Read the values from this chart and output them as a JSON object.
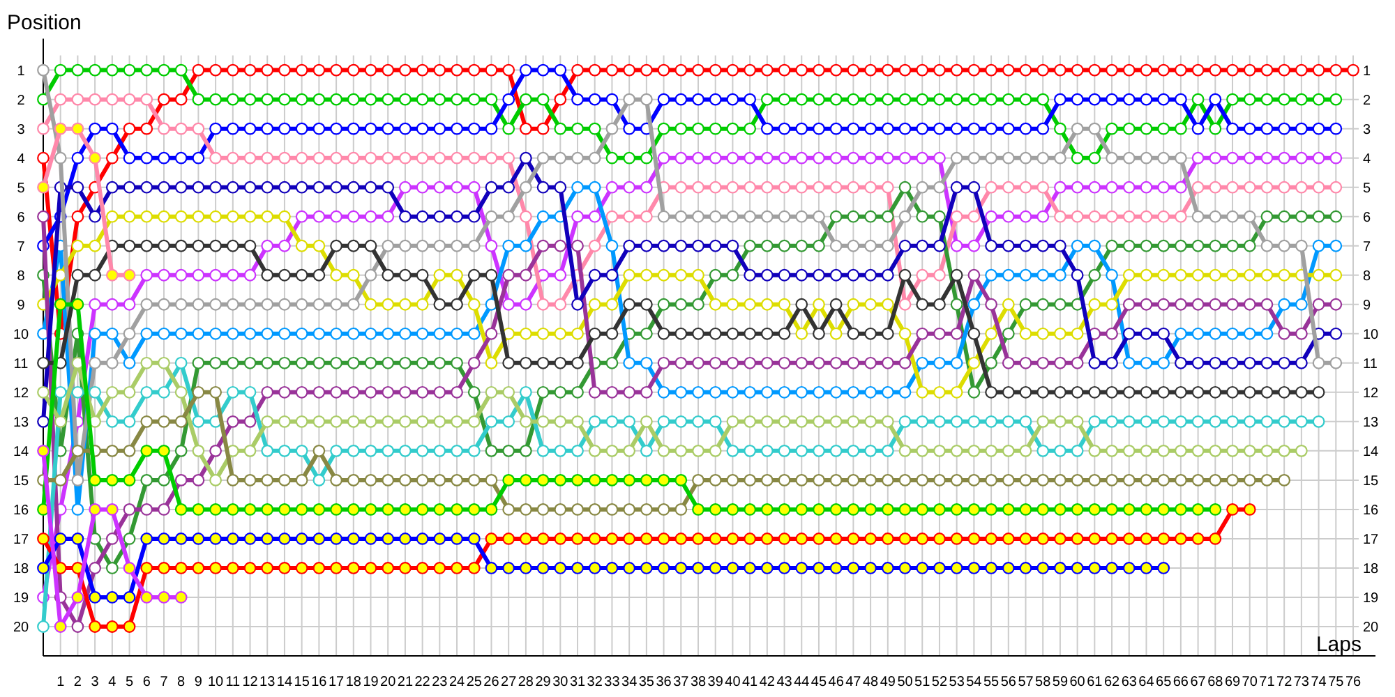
{
  "chart_data": {
    "type": "line",
    "xlabel": "Laps",
    "ylabel": "Position",
    "marker": "circle",
    "grid": true,
    "xlim": [
      0,
      76
    ],
    "xticks": [
      1,
      2,
      3,
      4,
      5,
      6,
      7,
      8,
      9,
      10,
      11,
      12,
      13,
      14,
      15,
      16,
      17,
      18,
      19,
      20,
      21,
      22,
      23,
      24,
      25,
      26,
      27,
      28,
      29,
      30,
      31,
      32,
      33,
      34,
      35,
      36,
      37,
      38,
      39,
      40,
      41,
      42,
      43,
      44,
      45,
      46,
      47,
      48,
      49,
      50,
      51,
      52,
      53,
      54,
      55,
      56,
      57,
      58,
      59,
      60,
      61,
      62,
      63,
      64,
      65,
      66,
      67,
      68,
      69,
      70,
      71,
      72,
      73,
      74,
      75,
      76
    ],
    "ylim": [
      21,
      0.5
    ],
    "yticks": [
      1,
      2,
      3,
      4,
      5,
      6,
      7,
      8,
      9,
      10,
      11,
      12,
      13,
      14,
      15,
      16,
      17,
      18,
      19,
      20
    ],
    "y2lim": [
      21,
      0.5
    ],
    "y2ticks": [
      1,
      2,
      3,
      4,
      5,
      6,
      7,
      8,
      9,
      10,
      11,
      12,
      13,
      14,
      15,
      16,
      17,
      18,
      19,
      20
    ],
    "x": [
      0,
      1,
      2,
      3,
      4,
      5,
      6,
      7,
      8,
      9,
      10,
      11,
      12,
      13,
      14,
      15,
      16,
      17,
      18,
      19,
      20,
      21,
      22,
      23,
      24,
      25,
      26,
      27,
      28,
      29,
      30,
      31,
      32,
      33,
      34,
      35,
      36,
      37,
      38,
      39,
      40,
      41,
      42,
      43,
      44,
      45,
      46,
      47,
      48,
      49,
      50,
      51,
      52,
      53,
      54,
      55,
      56,
      57,
      58,
      59,
      60,
      61,
      62,
      63,
      64,
      65,
      66,
      67,
      68,
      69,
      70,
      71,
      72,
      73,
      74,
      75,
      76
    ],
    "series": [
      {
        "color": "#ff0000",
        "values": [
          4,
          10,
          6,
          5,
          4,
          3,
          3,
          2,
          2,
          1,
          1,
          1,
          1,
          1,
          1,
          1,
          1,
          1,
          1,
          1,
          1,
          1,
          1,
          1,
          1,
          1,
          1,
          1,
          3,
          3,
          2,
          1,
          1,
          1,
          1,
          1,
          1,
          1,
          1,
          1,
          1,
          1,
          1,
          1,
          1,
          1,
          1,
          1,
          1,
          1,
          1,
          1,
          1,
          1,
          1,
          1,
          1,
          1,
          1,
          1,
          1,
          1,
          1,
          1,
          1,
          1,
          1,
          1,
          1,
          1,
          1,
          1,
          1,
          1,
          1,
          1,
          1
        ]
      },
      {
        "color": "#00cc00",
        "values": [
          2,
          1,
          1,
          1,
          1,
          1,
          1,
          1,
          1,
          2,
          2,
          2,
          2,
          2,
          2,
          2,
          2,
          2,
          2,
          2,
          2,
          2,
          2,
          2,
          2,
          2,
          2,
          3,
          2,
          2,
          3,
          3,
          3,
          4,
          4,
          4,
          3,
          3,
          3,
          3,
          3,
          3,
          2,
          2,
          2,
          2,
          2,
          2,
          2,
          2,
          2,
          2,
          2,
          2,
          2,
          2,
          2,
          2,
          2,
          3,
          4,
          4,
          3,
          3,
          3,
          3,
          3,
          2,
          3,
          2,
          2,
          2,
          2,
          2,
          2,
          2,
          null
        ]
      },
      {
        "color": "#0000ff",
        "values": [
          7,
          6,
          4,
          3,
          3,
          4,
          4,
          4,
          4,
          4,
          3,
          3,
          3,
          3,
          3,
          3,
          3,
          3,
          3,
          3,
          3,
          3,
          3,
          3,
          3,
          3,
          3,
          2,
          1,
          1,
          1,
          2,
          2,
          2,
          3,
          3,
          2,
          2,
          2,
          2,
          2,
          2,
          3,
          3,
          3,
          3,
          3,
          3,
          3,
          3,
          3,
          3,
          3,
          3,
          3,
          3,
          3,
          3,
          3,
          2,
          2,
          2,
          2,
          2,
          2,
          2,
          2,
          3,
          2,
          3,
          3,
          3,
          3,
          3,
          3,
          3,
          null
        ]
      },
      {
        "color": "#cc33ff",
        "values": [
          19,
          16,
          13,
          9,
          9,
          9,
          8,
          8,
          8,
          8,
          8,
          8,
          8,
          7,
          7,
          6,
          6,
          6,
          6,
          6,
          6,
          5,
          5,
          5,
          5,
          5,
          7,
          9,
          9,
          8,
          8,
          6,
          6,
          5,
          5,
          5,
          4,
          4,
          4,
          4,
          4,
          4,
          4,
          4,
          4,
          4,
          4,
          4,
          4,
          4,
          4,
          4,
          4,
          7,
          7,
          6,
          6,
          6,
          6,
          5,
          5,
          5,
          5,
          5,
          5,
          5,
          5,
          4,
          4,
          4,
          4,
          4,
          4,
          4,
          4,
          4,
          null
        ]
      },
      {
        "color": "#ff88aa",
        "values": [
          3,
          2,
          2,
          2,
          2,
          2,
          2,
          3,
          3,
          3,
          4,
          4,
          4,
          4,
          4,
          4,
          4,
          4,
          4,
          4,
          4,
          4,
          4,
          4,
          4,
          4,
          4,
          4,
          6,
          9,
          9,
          8,
          7,
          6,
          6,
          6,
          5,
          5,
          5,
          5,
          5,
          5,
          5,
          5,
          5,
          5,
          5,
          5,
          5,
          5,
          9,
          8,
          8,
          6,
          6,
          5,
          5,
          5,
          5,
          6,
          6,
          6,
          6,
          6,
          6,
          6,
          6,
          5,
          5,
          5,
          5,
          5,
          5,
          5,
          5,
          5,
          null
        ]
      },
      {
        "color": "#339933",
        "values": [
          8,
          14,
          10,
          17,
          18,
          17,
          15,
          15,
          14,
          11,
          11,
          11,
          11,
          11,
          11,
          11,
          11,
          11,
          11,
          11,
          11,
          11,
          11,
          11,
          11,
          12,
          14,
          14,
          14,
          12,
          12,
          12,
          11,
          11,
          10,
          10,
          9,
          9,
          9,
          8,
          8,
          7,
          7,
          7,
          7,
          7,
          6,
          6,
          6,
          6,
          5,
          6,
          6,
          9,
          12,
          11,
          10,
          9,
          9,
          9,
          9,
          8,
          7,
          7,
          7,
          7,
          7,
          7,
          7,
          7,
          7,
          6,
          6,
          6,
          6,
          6,
          null
        ]
      },
      {
        "color": "#0099ff",
        "values": [
          10,
          7,
          16,
          10,
          10,
          11,
          10,
          10,
          10,
          10,
          10,
          10,
          10,
          10,
          10,
          10,
          10,
          10,
          10,
          10,
          10,
          10,
          10,
          10,
          10,
          10,
          9,
          7,
          7,
          6,
          6,
          5,
          5,
          7,
          11,
          11,
          12,
          12,
          12,
          12,
          12,
          12,
          12,
          12,
          12,
          12,
          12,
          12,
          12,
          12,
          12,
          11,
          11,
          11,
          9,
          8,
          8,
          8,
          8,
          8,
          7,
          7,
          8,
          11,
          11,
          11,
          10,
          10,
          10,
          10,
          10,
          10,
          9,
          9,
          7,
          7,
          null
        ]
      },
      {
        "color": "#dddd00",
        "values": [
          9,
          8,
          7,
          7,
          6,
          6,
          6,
          6,
          6,
          6,
          6,
          6,
          6,
          6,
          6,
          7,
          7,
          8,
          8,
          9,
          9,
          9,
          9,
          8,
          8,
          9,
          11,
          10,
          10,
          10,
          10,
          10,
          9,
          9,
          8,
          8,
          8,
          8,
          8,
          9,
          9,
          9,
          9,
          9,
          10,
          9,
          10,
          9,
          9,
          9,
          10,
          12,
          12,
          12,
          11,
          10,
          9,
          10,
          10,
          10,
          10,
          9,
          9,
          8,
          8,
          8,
          8,
          8,
          8,
          8,
          8,
          8,
          8,
          8,
          8,
          8,
          null
        ]
      },
      {
        "color": "#993399",
        "values": [
          6,
          19,
          20,
          18,
          17,
          16,
          16,
          16,
          15,
          15,
          14,
          13,
          13,
          12,
          12,
          12,
          12,
          12,
          12,
          12,
          12,
          12,
          12,
          12,
          12,
          11,
          10,
          8,
          8,
          7,
          7,
          7,
          12,
          12,
          12,
          12,
          11,
          11,
          11,
          11,
          11,
          11,
          11,
          11,
          11,
          11,
          11,
          11,
          11,
          11,
          11,
          10,
          10,
          10,
          8,
          9,
          11,
          11,
          11,
          11,
          11,
          10,
          10,
          9,
          9,
          9,
          9,
          9,
          9,
          9,
          9,
          9,
          10,
          10,
          9,
          9,
          null
        ]
      },
      {
        "color": "#1100bb",
        "values": [
          13,
          5,
          5,
          6,
          5,
          5,
          5,
          5,
          5,
          5,
          5,
          5,
          5,
          5,
          5,
          5,
          5,
          5,
          5,
          5,
          5,
          6,
          6,
          6,
          6,
          6,
          5,
          5,
          4,
          5,
          5,
          9,
          8,
          8,
          7,
          7,
          7,
          7,
          7,
          7,
          7,
          8,
          8,
          8,
          8,
          8,
          8,
          8,
          8,
          8,
          7,
          7,
          7,
          5,
          5,
          7,
          7,
          7,
          7,
          7,
          8,
          11,
          11,
          10,
          10,
          10,
          11,
          11,
          11,
          11,
          11,
          11,
          11,
          11,
          10,
          10,
          null
        ]
      },
      {
        "color": "#a0a0a0",
        "values": [
          1,
          4,
          15,
          11,
          11,
          10,
          9,
          9,
          9,
          9,
          9,
          9,
          9,
          9,
          9,
          9,
          9,
          9,
          9,
          8,
          7,
          7,
          7,
          7,
          7,
          7,
          6,
          6,
          5,
          4,
          4,
          4,
          4,
          3,
          2,
          2,
          6,
          6,
          6,
          6,
          6,
          6,
          6,
          6,
          6,
          6,
          7,
          7,
          7,
          7,
          6,
          5,
          5,
          4,
          4,
          4,
          4,
          4,
          4,
          4,
          3,
          3,
          4,
          4,
          4,
          4,
          4,
          6,
          6,
          6,
          6,
          7,
          7,
          7,
          11,
          11,
          null
        ]
      },
      {
        "color": "#333333",
        "values": [
          11,
          11,
          8,
          8,
          7,
          7,
          7,
          7,
          7,
          7,
          7,
          7,
          7,
          8,
          8,
          8,
          8,
          7,
          7,
          7,
          8,
          8,
          8,
          9,
          9,
          8,
          8,
          11,
          11,
          11,
          11,
          11,
          10,
          10,
          9,
          9,
          10,
          10,
          10,
          10,
          10,
          10,
          10,
          10,
          9,
          10,
          9,
          10,
          10,
          10,
          8,
          9,
          9,
          8,
          10,
          12,
          12,
          12,
          12,
          12,
          12,
          12,
          12,
          12,
          12,
          12,
          12,
          12,
          12,
          12,
          12,
          12,
          12,
          12,
          12,
          null,
          null
        ]
      },
      {
        "color": "#33cccc",
        "values": [
          20,
          12,
          12,
          12,
          13,
          13,
          12,
          12,
          11,
          13,
          13,
          12,
          12,
          14,
          14,
          14,
          15,
          14,
          14,
          14,
          14,
          14,
          14,
          14,
          14,
          14,
          13,
          13,
          12,
          14,
          14,
          14,
          13,
          13,
          13,
          14,
          13,
          13,
          13,
          13,
          14,
          14,
          14,
          14,
          14,
          14,
          14,
          14,
          14,
          14,
          13,
          13,
          13,
          13,
          13,
          13,
          13,
          13,
          14,
          14,
          14,
          13,
          13,
          13,
          13,
          13,
          13,
          13,
          13,
          13,
          13,
          13,
          13,
          13,
          13,
          null,
          null
        ]
      },
      {
        "color": "#aacc66",
        "values": [
          12,
          13,
          11,
          13,
          12,
          12,
          11,
          11,
          12,
          14,
          15,
          14,
          14,
          13,
          13,
          13,
          13,
          13,
          13,
          13,
          13,
          13,
          13,
          13,
          13,
          13,
          12,
          12,
          13,
          13,
          13,
          13,
          14,
          14,
          14,
          13,
          14,
          14,
          14,
          14,
          13,
          13,
          13,
          13,
          13,
          13,
          13,
          13,
          13,
          13,
          14,
          14,
          14,
          14,
          14,
          14,
          14,
          14,
          13,
          13,
          13,
          14,
          14,
          14,
          14,
          14,
          14,
          14,
          14,
          14,
          14,
          14,
          14,
          14,
          null,
          null,
          null
        ]
      },
      {
        "color": "#888844",
        "values": [
          15,
          15,
          14,
          14,
          14,
          14,
          13,
          13,
          13,
          12,
          12,
          15,
          15,
          15,
          15,
          15,
          14,
          15,
          15,
          15,
          15,
          15,
          15,
          15,
          15,
          15,
          15,
          16,
          16,
          16,
          16,
          16,
          16,
          16,
          16,
          16,
          16,
          16,
          15,
          15,
          15,
          15,
          15,
          15,
          15,
          15,
          15,
          15,
          15,
          15,
          15,
          15,
          15,
          15,
          15,
          15,
          15,
          15,
          15,
          15,
          15,
          15,
          15,
          15,
          15,
          15,
          15,
          15,
          15,
          15,
          15,
          15,
          15,
          null,
          null,
          null,
          null
        ]
      },
      {
        "color": "#00cc00",
        "values": [
          16,
          9,
          9,
          15,
          15,
          15,
          14,
          14,
          16,
          16,
          16,
          16,
          16,
          16,
          16,
          16,
          16,
          16,
          16,
          16,
          16,
          16,
          16,
          16,
          16,
          16,
          16,
          15,
          15,
          15,
          15,
          15,
          15,
          15,
          15,
          15,
          15,
          15,
          16,
          16,
          16,
          16,
          16,
          16,
          16,
          16,
          16,
          16,
          16,
          16,
          16,
          16,
          16,
          16,
          16,
          16,
          16,
          16,
          16,
          16,
          16,
          16,
          16,
          16,
          16,
          16,
          16,
          16,
          16,
          null,
          null,
          null,
          null,
          null,
          null,
          null,
          null
        ],
        "colors": [
          "#ffff00",
          "#ffff00",
          "#ffff00",
          "#ffff00",
          "#ffff00",
          "#ffff00",
          "#ffff00",
          "#ffff00",
          "#ffff00",
          "#ffff00",
          "#ffff00",
          "#ffff00",
          "#ffff00",
          "#ffff00",
          "#ffff00",
          "#ffff00",
          "#ffff00",
          "#ffff00",
          "#ffff00",
          "#ffff00",
          "#ffff00",
          "#ffff00",
          "#ffff00",
          "#ffff00",
          "#ffff00",
          "#ffff00",
          "#ffff00",
          "#ffff00",
          "#ffff00",
          "#ffff00",
          "#ffff00",
          "#ffff00",
          "#ffff00",
          "#ffff00",
          "#ffff00",
          "#ffff00",
          "#ffff00",
          "#ffff00",
          "#ffff00",
          "#ffff00",
          "#ffff00",
          "#ffff00",
          "#ffff00",
          "#ffff00",
          "#ffff00",
          "#ffff00",
          "#ffff00",
          "#ffff00",
          "#ffff00",
          "#ffff00",
          "#ffff00",
          "#ffff00",
          "#ffff00",
          "#ffff00",
          "#ffff00",
          "#ffff00",
          "#ffff00",
          "#ffff00",
          "#ffff00",
          "#ffff00",
          "#ffff00",
          "#ffff00",
          "#ffff00",
          "#ffff00",
          "#ffff00",
          "#ffff00",
          "#ffff00",
          "#ffff00",
          "#ffff00",
          null,
          null,
          null,
          null,
          null,
          null,
          null,
          null
        ]
      },
      {
        "color": "#ff0000",
        "values": [
          17,
          18,
          18,
          20,
          20,
          20,
          18,
          18,
          18,
          18,
          18,
          18,
          18,
          18,
          18,
          18,
          18,
          18,
          18,
          18,
          18,
          18,
          18,
          18,
          18,
          18,
          17,
          17,
          17,
          17,
          17,
          17,
          17,
          17,
          17,
          17,
          17,
          17,
          17,
          17,
          17,
          17,
          17,
          17,
          17,
          17,
          17,
          17,
          17,
          17,
          17,
          17,
          17,
          17,
          17,
          17,
          17,
          17,
          17,
          17,
          17,
          17,
          17,
          17,
          17,
          17,
          17,
          17,
          17,
          16,
          16,
          null,
          null,
          null,
          null,
          null,
          null
        ],
        "colors": [
          "#ffff00",
          "#ffff00",
          "#ffff00",
          "#ffff00",
          "#ffff00",
          "#ffff00",
          "#ffff00",
          "#ffff00",
          "#ffff00",
          "#ffff00",
          "#ffff00",
          "#ffff00",
          "#ffff00",
          "#ffff00",
          "#ffff00",
          "#ffff00",
          "#ffff00",
          "#ffff00",
          "#ffff00",
          "#ffff00",
          "#ffff00",
          "#ffff00",
          "#ffff00",
          "#ffff00",
          "#ffff00",
          "#ffff00",
          "#ffff00",
          "#ffff00",
          "#ffff00",
          "#ffff00",
          "#ffff00",
          "#ffff00",
          "#ffff00",
          "#ffff00",
          "#ffff00",
          "#ffff00",
          "#ffff00",
          "#ffff00",
          "#ffff00",
          "#ffff00",
          "#ffff00",
          "#ffff00",
          "#ffff00",
          "#ffff00",
          "#ffff00",
          "#ffff00",
          "#ffff00",
          "#ffff00",
          "#ffff00",
          "#ffff00",
          "#ffff00",
          "#ffff00",
          "#ffff00",
          "#ffff00",
          "#ffff00",
          "#ffff00",
          "#ffff00",
          "#ffff00",
          "#ffff00",
          "#ffff00",
          "#ffff00",
          "#ffff00",
          "#ffff00",
          "#ffff00",
          "#ffff00",
          "#ffff00",
          "#ffff00",
          "#ffff00",
          "#ffff00",
          "#ffff00",
          "#ffff00",
          null,
          null,
          null,
          null,
          null,
          null
        ]
      },
      {
        "color": "#0000ff",
        "values": [
          18,
          17,
          17,
          19,
          19,
          19,
          17,
          17,
          17,
          17,
          17,
          17,
          17,
          17,
          17,
          17,
          17,
          17,
          17,
          17,
          17,
          17,
          17,
          17,
          17,
          17,
          18,
          18,
          18,
          18,
          18,
          18,
          18,
          18,
          18,
          18,
          18,
          18,
          18,
          18,
          18,
          18,
          18,
          18,
          18,
          18,
          18,
          18,
          18,
          18,
          18,
          18,
          18,
          18,
          18,
          18,
          18,
          18,
          18,
          18,
          18,
          18,
          18,
          18,
          18,
          18,
          null,
          null,
          null,
          null,
          null,
          null,
          null,
          null,
          null,
          null,
          null
        ],
        "colors": [
          "#ffff00",
          "#ffff00",
          "#ffff00",
          "#ffff00",
          "#ffff00",
          "#ffff00",
          "#ffff00",
          "#ffff00",
          "#ffff00",
          "#ffff00",
          "#ffff00",
          "#ffff00",
          "#ffff00",
          "#ffff00",
          "#ffff00",
          "#ffff00",
          "#ffff00",
          "#ffff00",
          "#ffff00",
          "#ffff00",
          "#ffff00",
          "#ffff00",
          "#ffff00",
          "#ffff00",
          "#ffff00",
          "#ffff00",
          "#ffff00",
          "#ffff00",
          "#ffff00",
          "#ffff00",
          "#ffff00",
          "#ffff00",
          "#ffff00",
          "#ffff00",
          "#ffff00",
          "#ffff00",
          "#ffff00",
          "#ffff00",
          "#ffff00",
          "#ffff00",
          "#ffff00",
          "#ffff00",
          "#ffff00",
          "#ffff00",
          "#ffff00",
          "#ffff00",
          "#ffff00",
          "#ffff00",
          "#ffff00",
          "#ffff00",
          "#ffff00",
          "#ffff00",
          "#ffff00",
          "#ffff00",
          "#ffff00",
          "#ffff00",
          "#ffff00",
          "#ffff00",
          "#ffff00",
          "#ffff00",
          "#ffff00",
          "#ffff00",
          "#ffff00",
          "#ffff00",
          "#ffff00",
          "#ffff00",
          null,
          null,
          null,
          null,
          null,
          null,
          null,
          null,
          null,
          null,
          null
        ]
      },
      {
        "color": "#cc33ff",
        "x": [
          0,
          1,
          2,
          3,
          4,
          5,
          6,
          7,
          8
        ],
        "values": [
          14,
          20,
          19,
          16,
          16,
          18,
          19,
          19,
          19
        ],
        "colors": [
          "#ffff00",
          "#ffff00",
          "#ffff00",
          "#ffff00",
          "#ffff00",
          "#ffff00",
          "#ffff00",
          "#ffff00",
          "#ffff00"
        ]
      },
      {
        "color": "#ff88aa",
        "x": [
          0,
          1,
          2,
          3,
          4,
          5
        ],
        "values": [
          5,
          3,
          3,
          4,
          8,
          8
        ],
        "colors": [
          "#ffff00",
          "#ffff00",
          "#ffff00",
          "#ffff00",
          "#ffff00",
          "#ffff00"
        ]
      }
    ]
  }
}
